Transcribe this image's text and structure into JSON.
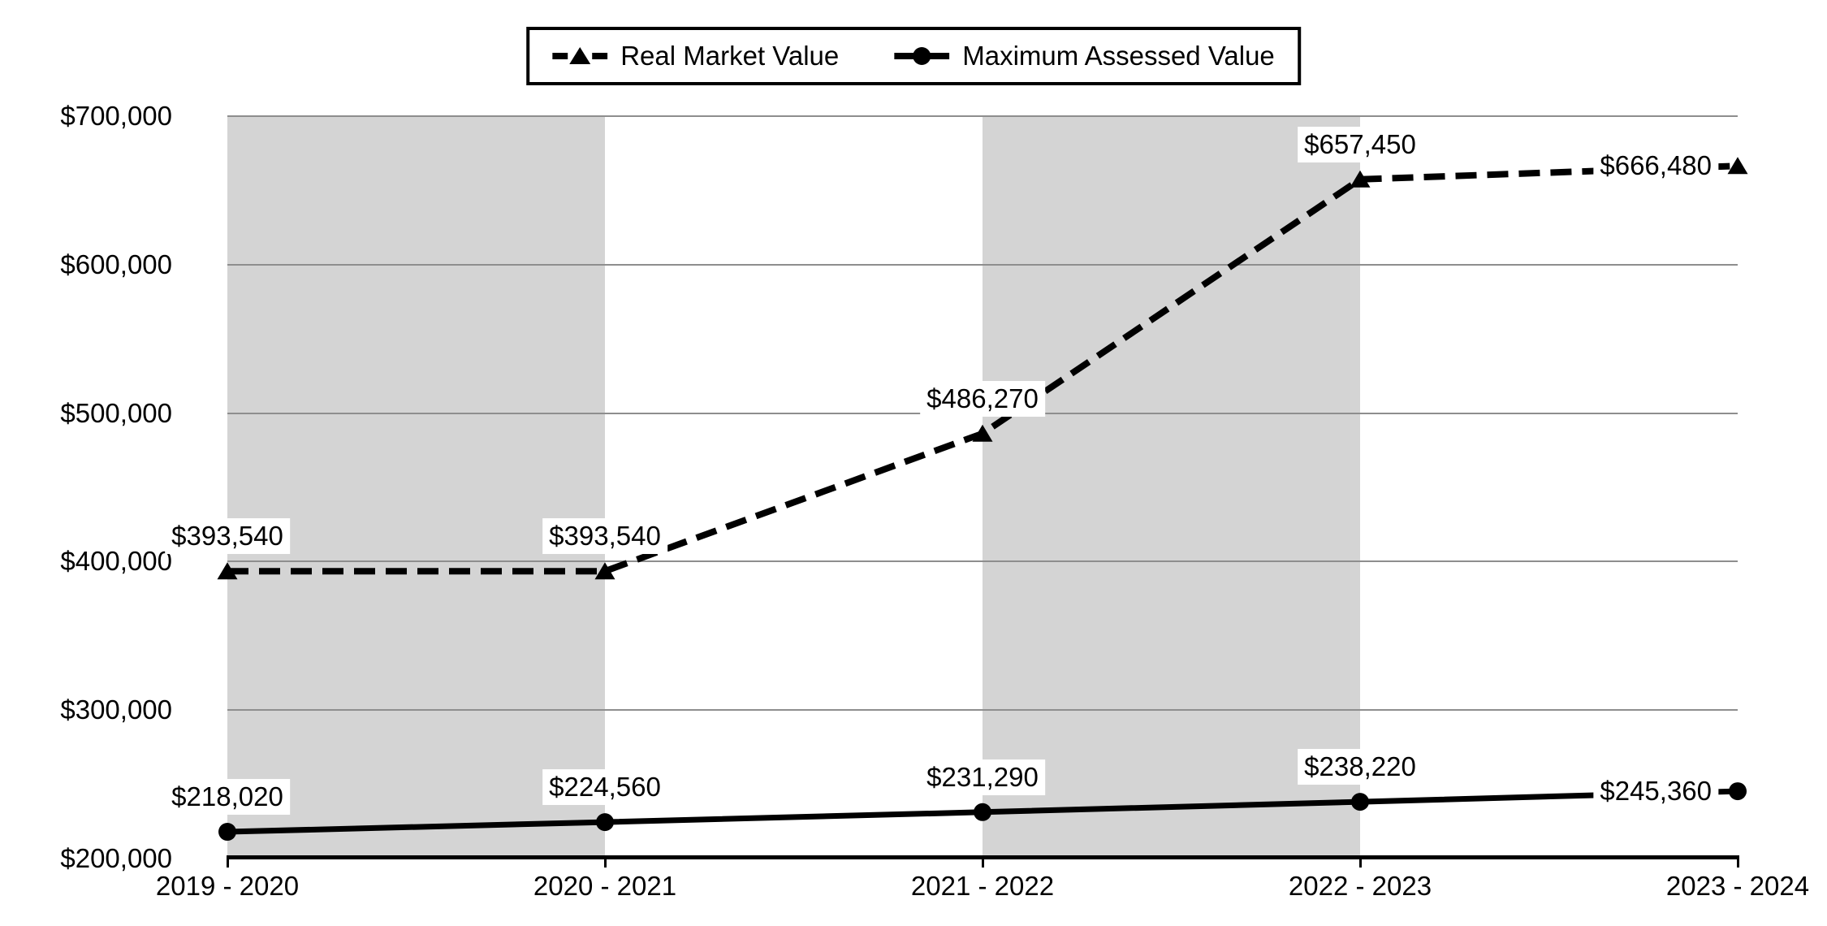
{
  "chart_data": {
    "type": "line",
    "title": "",
    "categories": [
      "2019 - 2020",
      "2020 - 2021",
      "2021 - 2022",
      "2022 - 2023",
      "2023 - 2024"
    ],
    "series": [
      {
        "name": "Real Market Value",
        "line_style": "dashed",
        "marker": "triangle",
        "color": "#000000",
        "values": [
          393540,
          393540,
          486270,
          657450,
          666480
        ],
        "data_labels": [
          "$393,540",
          "$393,540",
          "$486,270",
          "$657,450",
          "$666,480"
        ]
      },
      {
        "name": "Maximum Assessed Value",
        "line_style": "solid",
        "marker": "circle",
        "color": "#000000",
        "values": [
          218020,
          224560,
          231290,
          238220,
          245360
        ],
        "data_labels": [
          "$218,020",
          "$224,560",
          "$231,290",
          "$238,220",
          "$245,360"
        ]
      }
    ],
    "y_axis": {
      "min": 200000,
      "max": 700000,
      "step": 100000,
      "tick_labels": [
        "$200,000",
        "$300,000",
        "$400,000",
        "$500,000",
        "$600,000",
        "$700,000"
      ]
    },
    "legend_position": "top-center",
    "grid": "horizontal",
    "shaded_column_intervals": [
      [
        0,
        1
      ],
      [
        2,
        3
      ]
    ],
    "colors": {
      "series": "#000000",
      "shaded_band": "#d4d4d4",
      "gridline": "#8e8e8e",
      "axis_line": "#000000",
      "data_label_bg": "#ffffff",
      "legend_border": "#000000",
      "background": "#ffffff"
    }
  }
}
